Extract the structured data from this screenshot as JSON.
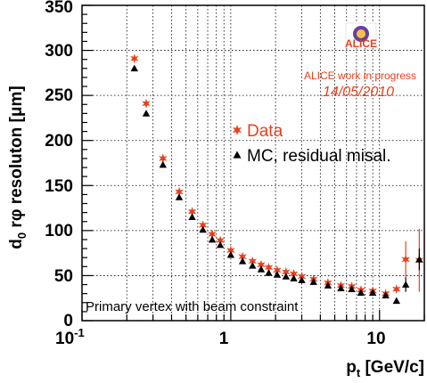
{
  "chart_data": {
    "type": "scatter",
    "title": "",
    "xlabel": "p_t [GeV/c]",
    "xlabel_main": "p",
    "xlabel_sub": "t",
    "xlabel_unit": " [GeV/c]",
    "ylabel_pre": "d",
    "ylabel_sub": "0",
    "ylabel_mid": " r",
    "ylabel_phi": "φ",
    "ylabel_post": " resoluton [μm]",
    "xscale": "log",
    "xlim": [
      0.1,
      20
    ],
    "ylim": [
      0,
      350
    ],
    "x_tick_labels": [
      "10",
      "1",
      "10"
    ],
    "x_tick_exp": "-1",
    "y_tick_labels": [
      "0",
      "50",
      "100",
      "150",
      "200",
      "250",
      "300",
      "350"
    ],
    "grid": true,
    "legend_position": "right",
    "annotations": {
      "alice_logo_text": "ALICE",
      "alice_line1": "ALICE work in progress",
      "alice_line2": "14/05/2010",
      "bottom_note": "Primary vertex with beam constraint"
    },
    "series": [
      {
        "name": "Data",
        "marker": "star",
        "color": "#e8401c",
        "x": [
          0.225,
          0.27,
          0.35,
          0.45,
          0.55,
          0.65,
          0.75,
          0.85,
          1.0,
          1.2,
          1.4,
          1.6,
          1.8,
          2.05,
          2.35,
          2.65,
          3.0,
          3.6,
          4.5,
          5.5,
          6.5,
          7.5,
          9.0,
          11.0,
          13.0,
          15.0,
          18.5
        ],
        "y": [
          291,
          241,
          180,
          143,
          121,
          106,
          96,
          89,
          78,
          71,
          66,
          62,
          59,
          56,
          54,
          52,
          49,
          46,
          42,
          39,
          38,
          34,
          33,
          30,
          35,
          68,
          67
        ],
        "yerr": [
          0,
          0,
          0,
          0,
          0,
          0,
          0,
          0,
          0,
          0,
          0,
          0,
          0,
          0,
          0,
          0,
          0,
          0,
          0,
          0,
          0,
          0,
          0,
          0,
          0,
          20,
          35
        ]
      },
      {
        "name": "MC, residual misal.",
        "marker": "triangle",
        "color": "#000000",
        "x": [
          0.225,
          0.27,
          0.35,
          0.45,
          0.55,
          0.65,
          0.75,
          0.85,
          1.0,
          1.2,
          1.4,
          1.6,
          1.8,
          2.05,
          2.35,
          2.65,
          3.0,
          3.6,
          4.5,
          5.5,
          6.5,
          7.5,
          9.0,
          11.0,
          13.0,
          15.0,
          18.5
        ],
        "y": [
          280,
          230,
          173,
          137,
          115,
          101,
          90,
          84,
          73,
          66,
          61,
          57,
          53,
          51,
          49,
          47,
          45,
          43,
          39,
          36,
          35,
          31,
          31,
          28,
          22,
          40,
          68
        ],
        "yerr": [
          0,
          0,
          0,
          0,
          0,
          0,
          0,
          0,
          0,
          0,
          0,
          0,
          0,
          0,
          0,
          0,
          0,
          0,
          0,
          0,
          0,
          0,
          0,
          0,
          0,
          8,
          12
        ]
      }
    ]
  },
  "colors": {
    "data": "#e8401c",
    "mc": "#000000",
    "alice_text": "#e8401c",
    "grid": "#000000"
  }
}
